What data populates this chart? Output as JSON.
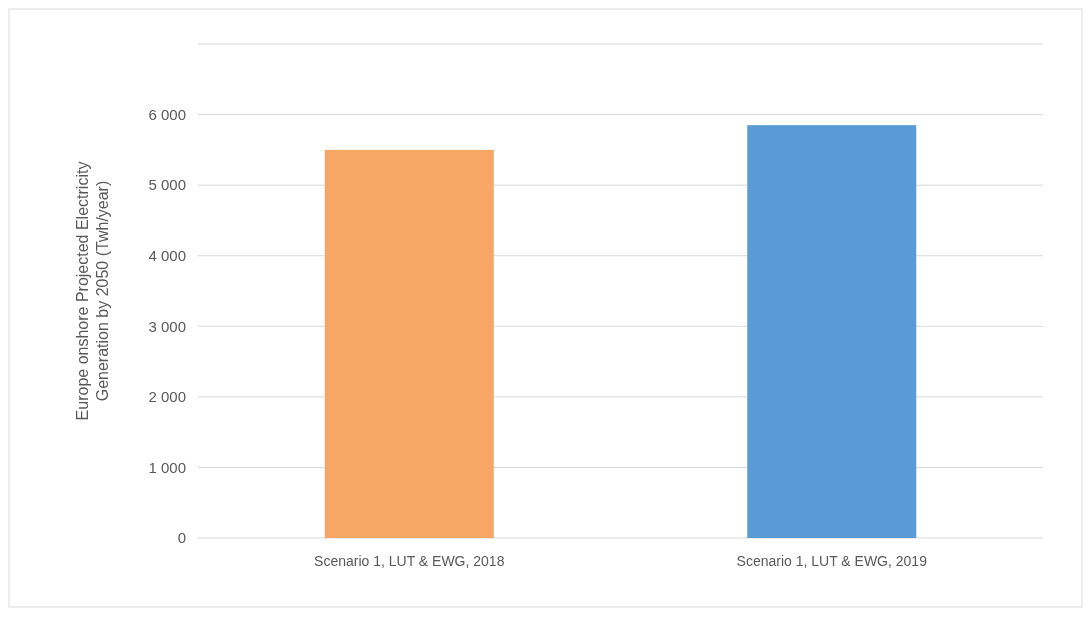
{
  "chart_data": {
    "type": "bar",
    "ylabel": "Europe onshore  Projected Electricity\nGeneration by 2050 (Twh/year)",
    "categories": [
      "Scenario 1, LUT & EWG, 2018",
      "Scenario 1, LUT & EWG, 2019"
    ],
    "values": [
      5500,
      5850
    ],
    "colors": [
      "#f6a765",
      "#5b9bd5"
    ],
    "ylim": [
      0,
      7000
    ],
    "yticks": [
      {
        "value": 0,
        "label": "0"
      },
      {
        "value": 1000,
        "label": "1 000"
      },
      {
        "value": 2000,
        "label": "2 000"
      },
      {
        "value": 3000,
        "label": "3 000"
      },
      {
        "value": 4000,
        "label": "4 000"
      },
      {
        "value": 5000,
        "label": "5 000"
      },
      {
        "value": 6000,
        "label": "6 000"
      },
      {
        "value": 7000,
        "label": null
      }
    ],
    "grid": "y"
  }
}
